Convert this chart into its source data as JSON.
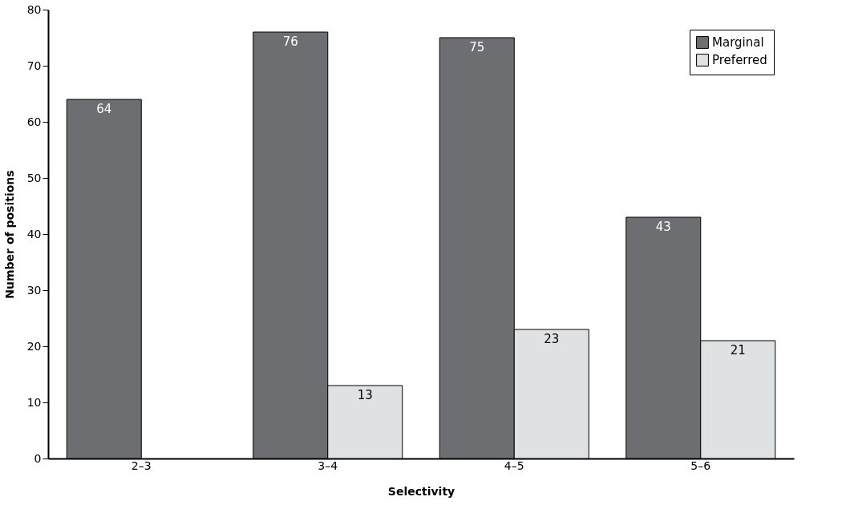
{
  "chart_data": {
    "type": "bar",
    "xlabel": "Selectivity",
    "ylabel": "Number of positions",
    "categories": [
      "2–3",
      "3–4",
      "4–5",
      "5–6"
    ],
    "series": [
      {
        "name": "Marginal",
        "color": "#6d6e71",
        "values": [
          64,
          76,
          75,
          43
        ]
      },
      {
        "name": "Preferred",
        "color": "#e0e1e3",
        "values": [
          null,
          13,
          23,
          21
        ]
      }
    ],
    "ylim": [
      0,
      80
    ],
    "yticks": [
      0,
      10,
      20,
      30,
      40,
      50,
      60,
      70,
      80
    ],
    "data_labels": true,
    "grid": false,
    "legend": "top right"
  }
}
